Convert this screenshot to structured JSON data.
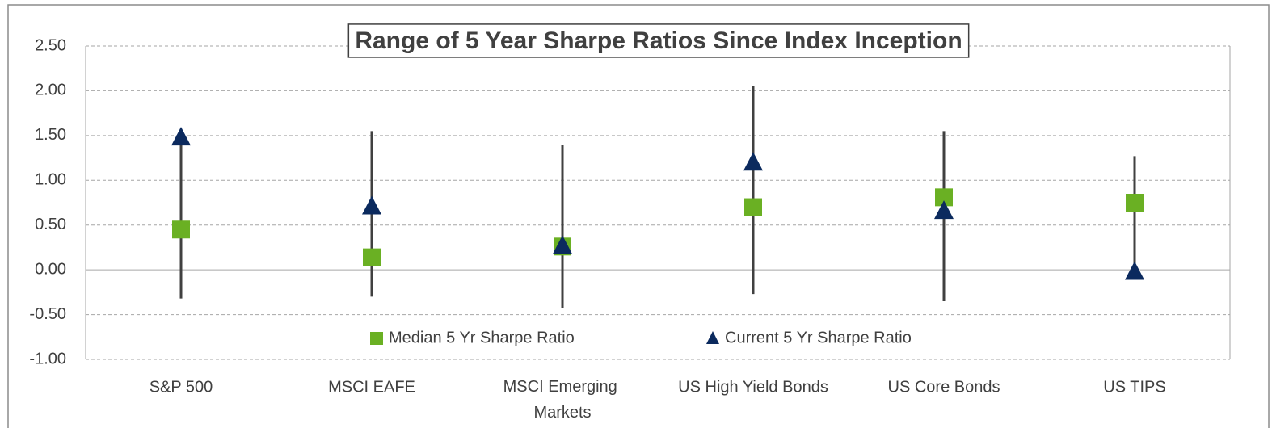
{
  "chart_data": {
    "type": "range",
    "title": "Range of 5 Year Sharpe Ratios Since Index Inception",
    "categories": [
      "S&P 500",
      "MSCI EAFE",
      "MSCI Emerging Markets",
      "US High Yield Bonds",
      "US Core Bonds",
      "US TIPS"
    ],
    "range": {
      "color": "#404040",
      "high": [
        1.48,
        1.55,
        1.4,
        2.05,
        1.55,
        1.27
      ],
      "low": [
        -0.32,
        -0.3,
        -0.43,
        -0.27,
        -0.35,
        -0.05
      ]
    },
    "series": [
      {
        "name": "Median 5 Yr Sharpe Ratio",
        "color": "#6ab023",
        "marker": "square",
        "values": [
          0.45,
          0.14,
          0.26,
          0.7,
          0.81,
          0.75
        ]
      },
      {
        "name": "Current 5 Yr Sharpe Ratio",
        "color": "#0b2a5e",
        "marker": "triangle",
        "values": [
          1.47,
          0.7,
          0.26,
          1.19,
          0.65,
          -0.03
        ]
      }
    ],
    "ylim": [
      -1,
      2.5
    ],
    "yticks": [
      {
        "value": -1,
        "label": "-1.00"
      },
      {
        "value": -0.5,
        "label": "-0.50"
      },
      {
        "value": 0,
        "label": "0.00"
      },
      {
        "value": 0.5,
        "label": "0.50"
      },
      {
        "value": 1,
        "label": "1.00"
      },
      {
        "value": 1.5,
        "label": "1.50"
      },
      {
        "value": 2,
        "label": "2.00"
      },
      {
        "value": 2.5,
        "label": "2.50"
      }
    ],
    "grid": true,
    "legend": "bottom"
  }
}
